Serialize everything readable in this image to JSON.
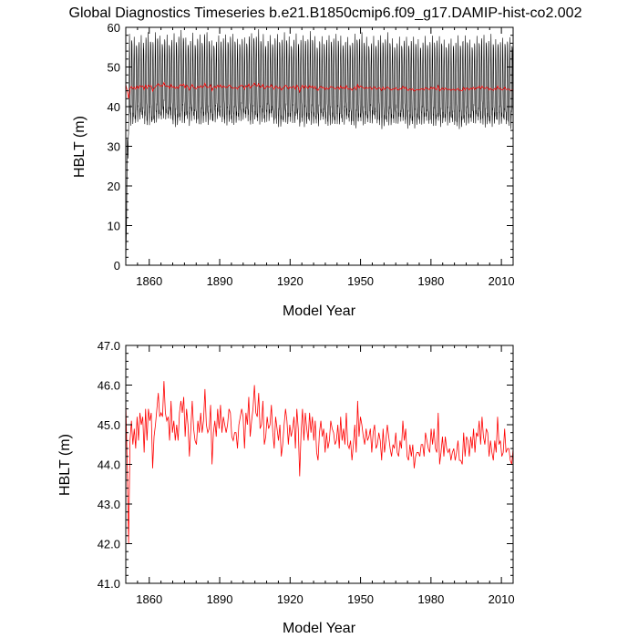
{
  "chart_data": [
    {
      "type": "line",
      "title": "Global Diagnostics Timeseries b.e21.B1850cmip6.f09_g17.DAMIP-hist-co2.002",
      "xlabel": "Model Year",
      "ylabel": "HBLT (m)",
      "xlim": [
        1850,
        2015
      ],
      "ylim": [
        0,
        60
      ],
      "xticks": [
        1860,
        1890,
        1920,
        1950,
        1980,
        2010
      ],
      "xtick_labels": [
        "1860",
        "1890",
        "1920",
        "1950",
        "1980",
        "2010"
      ],
      "yticks": [
        0,
        10,
        20,
        30,
        40,
        50,
        60
      ],
      "ytick_labels": [
        "0",
        "10",
        "20",
        "30",
        "40",
        "50",
        "60"
      ],
      "grid": false,
      "series": [
        {
          "color": "#000000",
          "resolution": "monthly",
          "description_values": {
            "monthly_max_approx": 57,
            "monthly_min_approx": 37,
            "spinup_start": 0
          }
        },
        {
          "color": "#ff0000",
          "resolution": "annual",
          "source": "annual_mean"
        }
      ]
    },
    {
      "type": "line",
      "xlabel": "Model Year",
      "ylabel": "HBLT (m)",
      "xlim": [
        1850,
        2015
      ],
      "ylim": [
        41.0,
        47.0
      ],
      "xticks": [
        1860,
        1890,
        1920,
        1950,
        1980,
        2010
      ],
      "xtick_labels": [
        "1860",
        "1890",
        "1920",
        "1950",
        "1980",
        "2010"
      ],
      "yticks": [
        41.0,
        42.0,
        43.0,
        44.0,
        45.0,
        46.0,
        47.0
      ],
      "ytick_labels": [
        "41.0",
        "42.0",
        "43.0",
        "44.0",
        "45.0",
        "46.0",
        "47.0"
      ],
      "grid": false,
      "series": [
        {
          "color": "#ff0000",
          "x_start": 1850,
          "values": [
            45.6,
            44.0,
            42.0,
            44.6,
            45.1,
            44.5,
            44.9,
            44.4,
            45.2,
            44.6,
            45.3,
            45.0,
            45.2,
            44.3,
            45.4,
            44.6,
            45.4,
            45.1,
            45.3,
            43.9,
            44.7,
            45.0,
            45.4,
            45.8,
            45.2,
            45.3,
            45.2,
            46.1,
            45.3,
            45.1,
            45.2,
            44.6,
            45.6,
            44.8,
            45.1,
            44.6,
            45.0,
            44.6,
            45.3,
            45.6,
            45.3,
            45.7,
            44.7,
            45.4,
            45.0,
            44.2,
            44.9,
            45.6,
            44.9,
            44.6,
            44.5,
            45.1,
            44.8,
            45.3,
            44.8,
            45.1,
            45.9,
            45.0,
            44.8,
            44.9,
            45.5,
            44.0,
            44.8,
            45.1,
            44.7,
            45.4,
            44.9,
            45.5,
            44.8,
            45.2,
            45.0,
            44.8,
            45.0,
            45.4,
            45.3,
            44.7,
            44.6,
            44.8,
            44.8,
            44.4,
            45.0,
            45.2,
            45.4,
            45.2,
            44.4,
            45.3,
            45.0,
            45.7,
            44.7,
            45.1,
            45.4,
            46.0,
            45.3,
            45.2,
            45.8,
            44.9,
            45.0,
            45.6,
            44.5,
            44.7,
            45.2,
            44.9,
            45.0,
            45.5,
            44.8,
            44.4,
            45.2,
            44.9,
            44.6,
            45.0,
            44.2,
            44.5,
            45.0,
            45.4,
            45.1,
            44.5,
            45.0,
            44.7,
            44.9,
            45.2,
            44.4,
            45.4,
            44.9,
            43.7,
            44.8,
            45.4,
            44.6,
            45.3,
            44.9,
            44.6,
            45.3,
            44.8,
            45.2,
            44.6,
            45.1,
            44.3,
            44.1,
            44.8,
            45.1,
            44.7,
            44.9,
            44.3,
            44.8,
            44.4,
            44.6,
            45.1,
            44.9,
            44.8,
            44.5,
            44.6,
            45.0,
            44.4,
            45.2,
            44.6,
            44.9,
            44.5,
            45.3,
            44.5,
            44.4,
            44.6,
            44.1,
            44.5,
            45.0,
            44.3,
            45.6,
            44.7,
            45.2,
            45.0,
            44.7,
            44.5,
            44.9,
            44.6,
            44.7,
            44.9,
            44.3,
            44.8,
            45.0,
            44.4,
            44.5,
            44.8,
            44.6,
            44.1,
            44.9,
            44.3,
            44.6,
            45.0,
            44.7,
            44.4,
            44.2,
            44.5,
            44.4,
            44.8,
            44.3,
            44.2,
            44.6,
            44.4,
            45.1,
            44.6,
            44.9,
            44.2,
            44.1,
            44.5,
            44.2,
            44.5,
            43.9,
            44.2,
            44.3,
            44.3,
            44.2,
            44.5,
            44.5,
            44.2,
            44.8,
            44.6,
            44.4,
            44.3,
            44.9,
            44.5,
            44.9,
            44.4,
            44.3,
            45.3,
            44.0,
            44.3,
            44.7,
            44.2,
            44.7,
            44.4,
            44.3,
            44.4,
            44.1,
            44.3,
            44.4,
            44.1,
            44.3,
            44.6,
            44.1,
            44.1,
            44.0,
            44.8,
            44.2,
            44.7,
            44.6,
            44.2,
            44.7,
            44.4,
            44.9,
            44.3,
            44.8,
            44.7,
            45.1,
            44.5,
            45.2,
            44.7,
            44.5,
            44.9,
            44.8,
            44.2,
            44.6,
            44.3,
            44.1,
            44.6,
            44.3,
            45.2,
            44.5,
            44.6,
            44.2,
            44.3,
            44.9,
            44.3,
            44.4,
            44.4,
            44.1,
            44.0,
            44.4
          ]
        }
      ]
    }
  ]
}
